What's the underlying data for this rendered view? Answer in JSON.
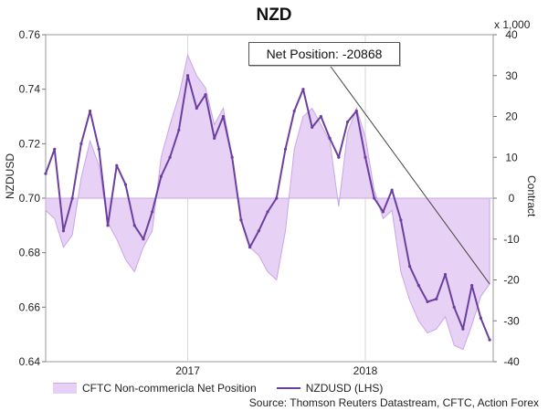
{
  "chart_data": {
    "type": "line",
    "title": "NZD",
    "ylabel_left": "NZDUSD",
    "ylabel_right": "Contract",
    "right_axis_scale_note": "x 1,000",
    "x_ticks": [
      "2017",
      "2018"
    ],
    "ylim_left": [
      0.64,
      0.76
    ],
    "ylim_right": [
      -40,
      40
    ],
    "yticks_left": [
      "0.64",
      "0.66",
      "0.68",
      "0.70",
      "0.72",
      "0.74",
      "0.76"
    ],
    "yticks_right": [
      "-40",
      "-30",
      "-20",
      "-10",
      "0",
      "10",
      "20",
      "30",
      "40"
    ],
    "annotation": "Net Position: -20868",
    "legend": [
      "CFTC Non-commericla Net Position",
      "NZDUSD (LHS)"
    ],
    "source": "Source: Thomson Reuters Datastream, CFTC, Action Forex",
    "series": [
      {
        "name": "NZDUSD (LHS)",
        "axis": "left",
        "color": "#6b3fa0",
        "x": [
          2016.2,
          2016.25,
          2016.3,
          2016.35,
          2016.4,
          2016.45,
          2016.5,
          2016.55,
          2016.6,
          2016.65,
          2016.7,
          2016.75,
          2016.8,
          2016.85,
          2016.9,
          2016.95,
          2017.0,
          2017.05,
          2017.1,
          2017.15,
          2017.2,
          2017.25,
          2017.3,
          2017.35,
          2017.4,
          2017.45,
          2017.5,
          2017.55,
          2017.6,
          2017.65,
          2017.7,
          2017.75,
          2017.8,
          2017.85,
          2017.9,
          2017.95,
          2018.0,
          2018.05,
          2018.1,
          2018.15,
          2018.2,
          2018.25,
          2018.3,
          2018.35,
          2018.4,
          2018.45,
          2018.5,
          2018.55,
          2018.6,
          2018.65,
          2018.7
        ],
        "values": [
          0.709,
          0.718,
          0.688,
          0.7,
          0.72,
          0.732,
          0.718,
          0.69,
          0.712,
          0.705,
          0.69,
          0.685,
          0.695,
          0.708,
          0.715,
          0.725,
          0.745,
          0.733,
          0.738,
          0.722,
          0.73,
          0.715,
          0.692,
          0.682,
          0.688,
          0.695,
          0.7,
          0.718,
          0.732,
          0.74,
          0.726,
          0.73,
          0.722,
          0.715,
          0.728,
          0.732,
          0.715,
          0.7,
          0.695,
          0.703,
          0.692,
          0.675,
          0.668,
          0.662,
          0.663,
          0.672,
          0.66,
          0.652,
          0.668,
          0.656,
          0.648
        ]
      },
      {
        "name": "CFTC Non-commericla Net Position",
        "axis": "right",
        "color": "#e6d0f5",
        "x": [
          2016.2,
          2016.25,
          2016.3,
          2016.35,
          2016.4,
          2016.45,
          2016.5,
          2016.55,
          2016.6,
          2016.65,
          2016.7,
          2016.75,
          2016.8,
          2016.85,
          2016.9,
          2016.95,
          2017.0,
          2017.05,
          2017.1,
          2017.15,
          2017.2,
          2017.25,
          2017.3,
          2017.35,
          2017.4,
          2017.45,
          2017.5,
          2017.55,
          2017.6,
          2017.65,
          2017.7,
          2017.75,
          2017.8,
          2017.85,
          2017.9,
          2017.95,
          2018.0,
          2018.05,
          2018.1,
          2018.15,
          2018.2,
          2018.25,
          2018.3,
          2018.35,
          2018.4,
          2018.45,
          2018.5,
          2018.55,
          2018.6,
          2018.65,
          2018.7
        ],
        "values": [
          -3,
          -5,
          -12,
          -9,
          5,
          14,
          8,
          -6,
          -10,
          -15,
          -18,
          -12,
          -8,
          10,
          18,
          25,
          35,
          30,
          27,
          18,
          22,
          10,
          -5,
          -12,
          -14,
          -18,
          -20,
          -8,
          12,
          20,
          22,
          18,
          14,
          -2,
          16,
          22,
          15,
          2,
          -5,
          -3,
          -18,
          -25,
          -30,
          -33,
          -32,
          -29,
          -36,
          -37,
          -31,
          -24,
          -21
        ]
      }
    ]
  }
}
